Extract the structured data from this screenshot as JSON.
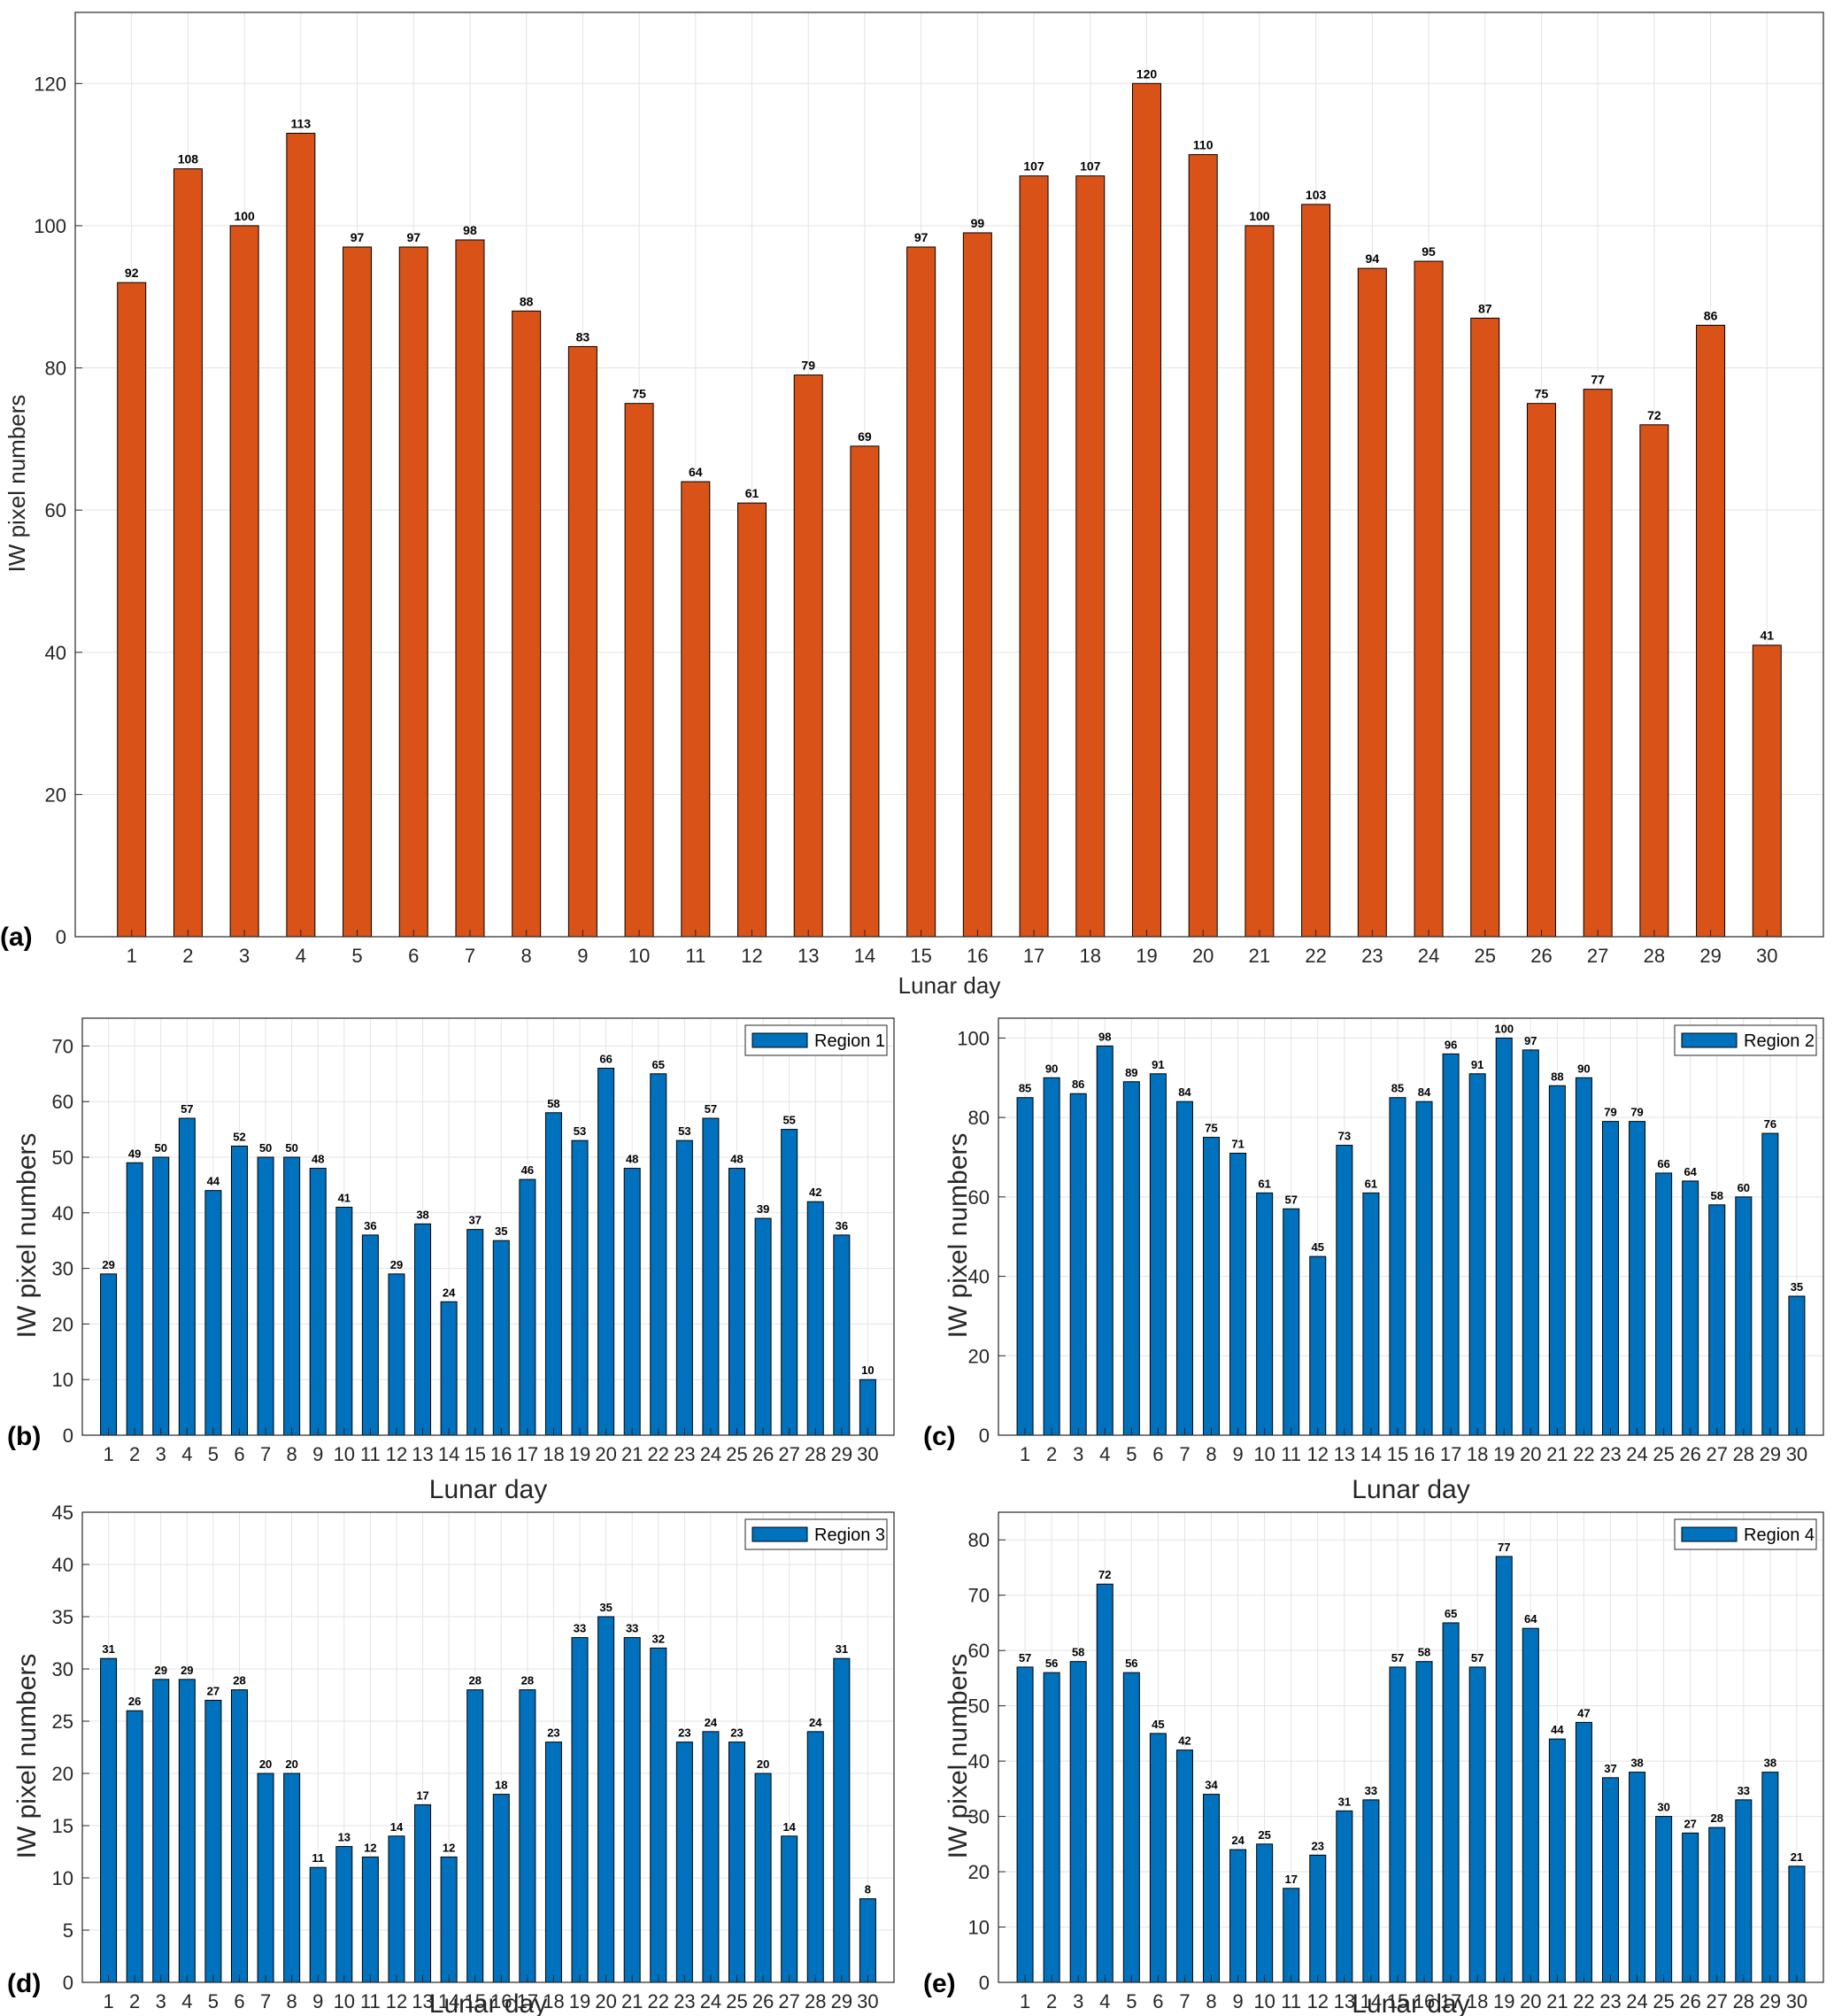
{
  "chart_data": [
    {
      "panel": "(a)",
      "type": "bar",
      "title": "",
      "xlabel": "Lunar day",
      "ylabel": "IW pixel numbers",
      "ylim": [
        0,
        130
      ],
      "yticks": [
        0,
        20,
        40,
        60,
        80,
        100,
        120
      ],
      "grid": true,
      "legend": null,
      "color": "#D95319",
      "categories": [
        "1",
        "2",
        "3",
        "4",
        "5",
        "6",
        "7",
        "8",
        "9",
        "10",
        "11",
        "12",
        "13",
        "14",
        "15",
        "16",
        "17",
        "18",
        "19",
        "20",
        "21",
        "22",
        "23",
        "24",
        "25",
        "26",
        "27",
        "28",
        "29",
        "30"
      ],
      "values": [
        92,
        108,
        100,
        113,
        97,
        97,
        98,
        88,
        83,
        75,
        64,
        61,
        79,
        69,
        97,
        99,
        107,
        107,
        120,
        110,
        100,
        103,
        94,
        95,
        87,
        75,
        77,
        72,
        86,
        41
      ]
    },
    {
      "panel": "(b)",
      "type": "bar",
      "title": "",
      "xlabel": "Lunar day",
      "ylabel": "IW pixel numbers",
      "ylim": [
        0,
        75
      ],
      "yticks": [
        0,
        10,
        20,
        30,
        40,
        50,
        60,
        70
      ],
      "grid": true,
      "legend": "top-right",
      "color": "#0072BD",
      "categories": [
        "1",
        "2",
        "3",
        "4",
        "5",
        "6",
        "7",
        "8",
        "9",
        "10",
        "11",
        "12",
        "13",
        "14",
        "15",
        "16",
        "17",
        "18",
        "19",
        "20",
        "21",
        "22",
        "23",
        "24",
        "25",
        "26",
        "27",
        "28",
        "29",
        "30"
      ],
      "series": [
        {
          "name": "Region 1",
          "values": [
            29,
            49,
            50,
            57,
            44,
            52,
            50,
            50,
            48,
            41,
            36,
            29,
            38,
            24,
            37,
            35,
            46,
            58,
            53,
            66,
            48,
            65,
            53,
            57,
            48,
            39,
            55,
            42,
            36,
            10
          ]
        }
      ]
    },
    {
      "panel": "(c)",
      "type": "bar",
      "title": "",
      "xlabel": "Lunar day",
      "ylabel": "IW pixel numbers",
      "ylim": [
        0,
        105
      ],
      "yticks": [
        0,
        20,
        40,
        60,
        80,
        100
      ],
      "grid": true,
      "legend": "top-right",
      "color": "#0072BD",
      "categories": [
        "1",
        "2",
        "3",
        "4",
        "5",
        "6",
        "7",
        "8",
        "9",
        "10",
        "11",
        "12",
        "13",
        "14",
        "15",
        "16",
        "17",
        "18",
        "19",
        "20",
        "21",
        "22",
        "23",
        "24",
        "25",
        "26",
        "27",
        "28",
        "29",
        "30"
      ],
      "series": [
        {
          "name": "Region 2",
          "values": [
            85,
            90,
            86,
            98,
            89,
            91,
            84,
            75,
            71,
            61,
            57,
            45,
            73,
            61,
            85,
            84,
            96,
            91,
            100,
            97,
            88,
            90,
            79,
            79,
            66,
            64,
            58,
            60,
            76,
            35
          ]
        }
      ]
    },
    {
      "panel": "(d)",
      "type": "bar",
      "title": "",
      "xlabel": "Lunar day",
      "ylabel": "IW pixel numbers",
      "ylim": [
        0,
        45
      ],
      "yticks": [
        0,
        5,
        10,
        15,
        20,
        25,
        30,
        35,
        40,
        45
      ],
      "grid": true,
      "legend": "top-right",
      "color": "#0072BD",
      "categories": [
        "1",
        "2",
        "3",
        "4",
        "5",
        "6",
        "7",
        "8",
        "9",
        "10",
        "11",
        "12",
        "13",
        "14",
        "15",
        "16",
        "17",
        "18",
        "19",
        "20",
        "21",
        "22",
        "23",
        "24",
        "25",
        "26",
        "27",
        "28",
        "29",
        "30"
      ],
      "series": [
        {
          "name": "Region 3",
          "values": [
            31,
            26,
            29,
            29,
            27,
            28,
            20,
            20,
            11,
            13,
            12,
            14,
            17,
            12,
            28,
            18,
            28,
            23,
            33,
            35,
            33,
            32,
            23,
            24,
            23,
            20,
            14,
            24,
            31,
            8
          ]
        }
      ]
    },
    {
      "panel": "(e)",
      "type": "bar",
      "title": "",
      "xlabel": "Lunar day",
      "ylabel": "IW pixel numbers",
      "ylim": [
        0,
        85
      ],
      "yticks": [
        0,
        10,
        20,
        30,
        40,
        50,
        60,
        70,
        80
      ],
      "grid": true,
      "legend": "top-right",
      "color": "#0072BD",
      "categories": [
        "1",
        "2",
        "3",
        "4",
        "5",
        "6",
        "7",
        "8",
        "9",
        "10",
        "11",
        "12",
        "13",
        "14",
        "15",
        "16",
        "17",
        "18",
        "19",
        "20",
        "21",
        "22",
        "23",
        "24",
        "25",
        "26",
        "27",
        "28",
        "29",
        "30"
      ],
      "series": [
        {
          "name": "Region 4",
          "values": [
            57,
            56,
            58,
            72,
            56,
            45,
            42,
            34,
            24,
            25,
            17,
            23,
            31,
            33,
            57,
            58,
            65,
            57,
            77,
            64,
            44,
            47,
            37,
            38,
            30,
            27,
            28,
            33,
            38,
            21
          ]
        }
      ]
    }
  ]
}
